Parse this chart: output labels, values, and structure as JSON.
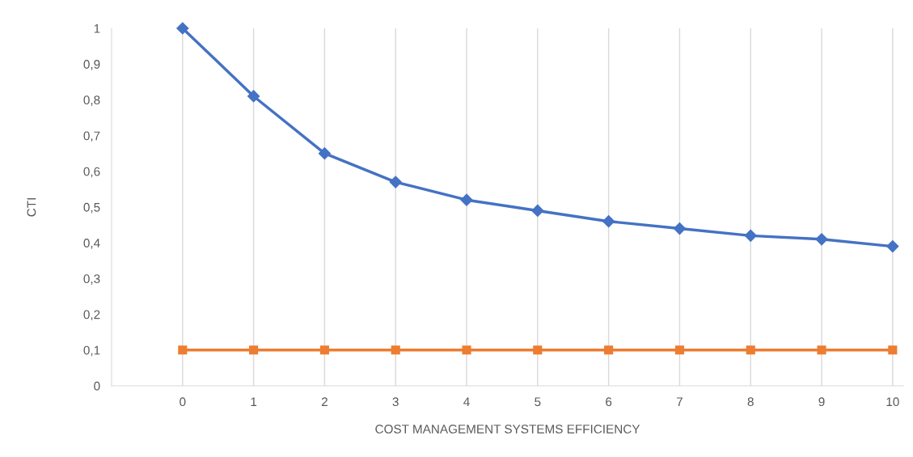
{
  "chart_data": {
    "type": "line",
    "xlabel": "COST MANAGEMENT SYSTEMS EFFICIENCY",
    "ylabel": "CTI",
    "x": [
      0,
      1,
      2,
      3,
      4,
      5,
      6,
      7,
      8,
      9,
      10
    ],
    "series": [
      {
        "color": "#4472c4",
        "marker": "diamond",
        "values": [
          1,
          0.81,
          0.65,
          0.57,
          0.52,
          0.49,
          0.46,
          0.44,
          0.42,
          0.41,
          0.39
        ]
      },
      {
        "color": "#ed7d31",
        "marker": "square",
        "values": [
          0.1,
          0.1,
          0.1,
          0.1,
          0.1,
          0.1,
          0.1,
          0.1,
          0.1,
          0.1,
          0.1
        ]
      }
    ],
    "xlim": [
      -1,
      10.15
    ],
    "xticks": [
      0,
      1,
      2,
      3,
      4,
      5,
      6,
      7,
      8,
      9,
      10
    ],
    "ylim": [
      0,
      1
    ],
    "yticks": [
      0,
      {
        "value": 0.1,
        "label": "0,1"
      },
      {
        "value": 0.2,
        "label": "0,2"
      },
      {
        "value": 0.3,
        "label": "0,3"
      },
      {
        "value": 0.4,
        "label": "0,4"
      },
      {
        "value": 0.5,
        "label": "0,5"
      },
      {
        "value": 0.6,
        "label": "0,6"
      },
      {
        "value": 0.7,
        "label": "0,7"
      },
      {
        "value": 0.8,
        "label": "0,8"
      },
      {
        "value": 0.9,
        "label": "0,9"
      },
      1
    ],
    "grid": "x",
    "line_style": "solid"
  }
}
